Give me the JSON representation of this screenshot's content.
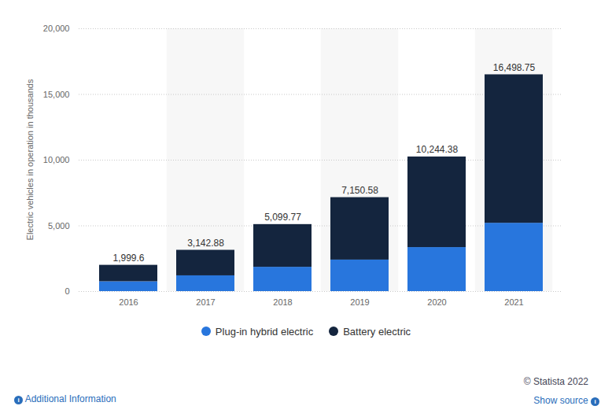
{
  "chart_data": {
    "type": "bar",
    "stacked": true,
    "y_label": "Electric vehicles in operation in thousands",
    "categories": [
      "2016",
      "2017",
      "2018",
      "2019",
      "2020",
      "2021"
    ],
    "series": [
      {
        "name": "Plug-in hybrid electric",
        "color": "#2876dd",
        "values": [
          750,
          1200,
          1850,
          2400,
          3350,
          5200
        ]
      },
      {
        "name": "Battery electric",
        "color": "#14253e",
        "values": [
          1249.6,
          1942.88,
          3249.77,
          4750.58,
          6894.38,
          11298.75
        ]
      }
    ],
    "totals": [
      1999.6,
      3142.88,
      5099.77,
      7150.58,
      10244.38,
      16498.75
    ],
    "total_labels": [
      "1,999.6",
      "3,142.88",
      "5,099.77",
      "7,150.58",
      "10,244.38",
      "16,498.75"
    ],
    "ylim": [
      0,
      20000
    ],
    "yticks": [
      0,
      {
        "value": 5000,
        "label": "5,000"
      },
      {
        "value": 10000,
        "label": "10,000"
      },
      {
        "value": 15000,
        "label": "15,000"
      },
      {
        "value": 20000,
        "label": "20,000"
      }
    ],
    "grid": true,
    "legend": "bottom",
    "annotations": [
      "© Statista 2022",
      "Additional Information",
      "Show source"
    ]
  }
}
